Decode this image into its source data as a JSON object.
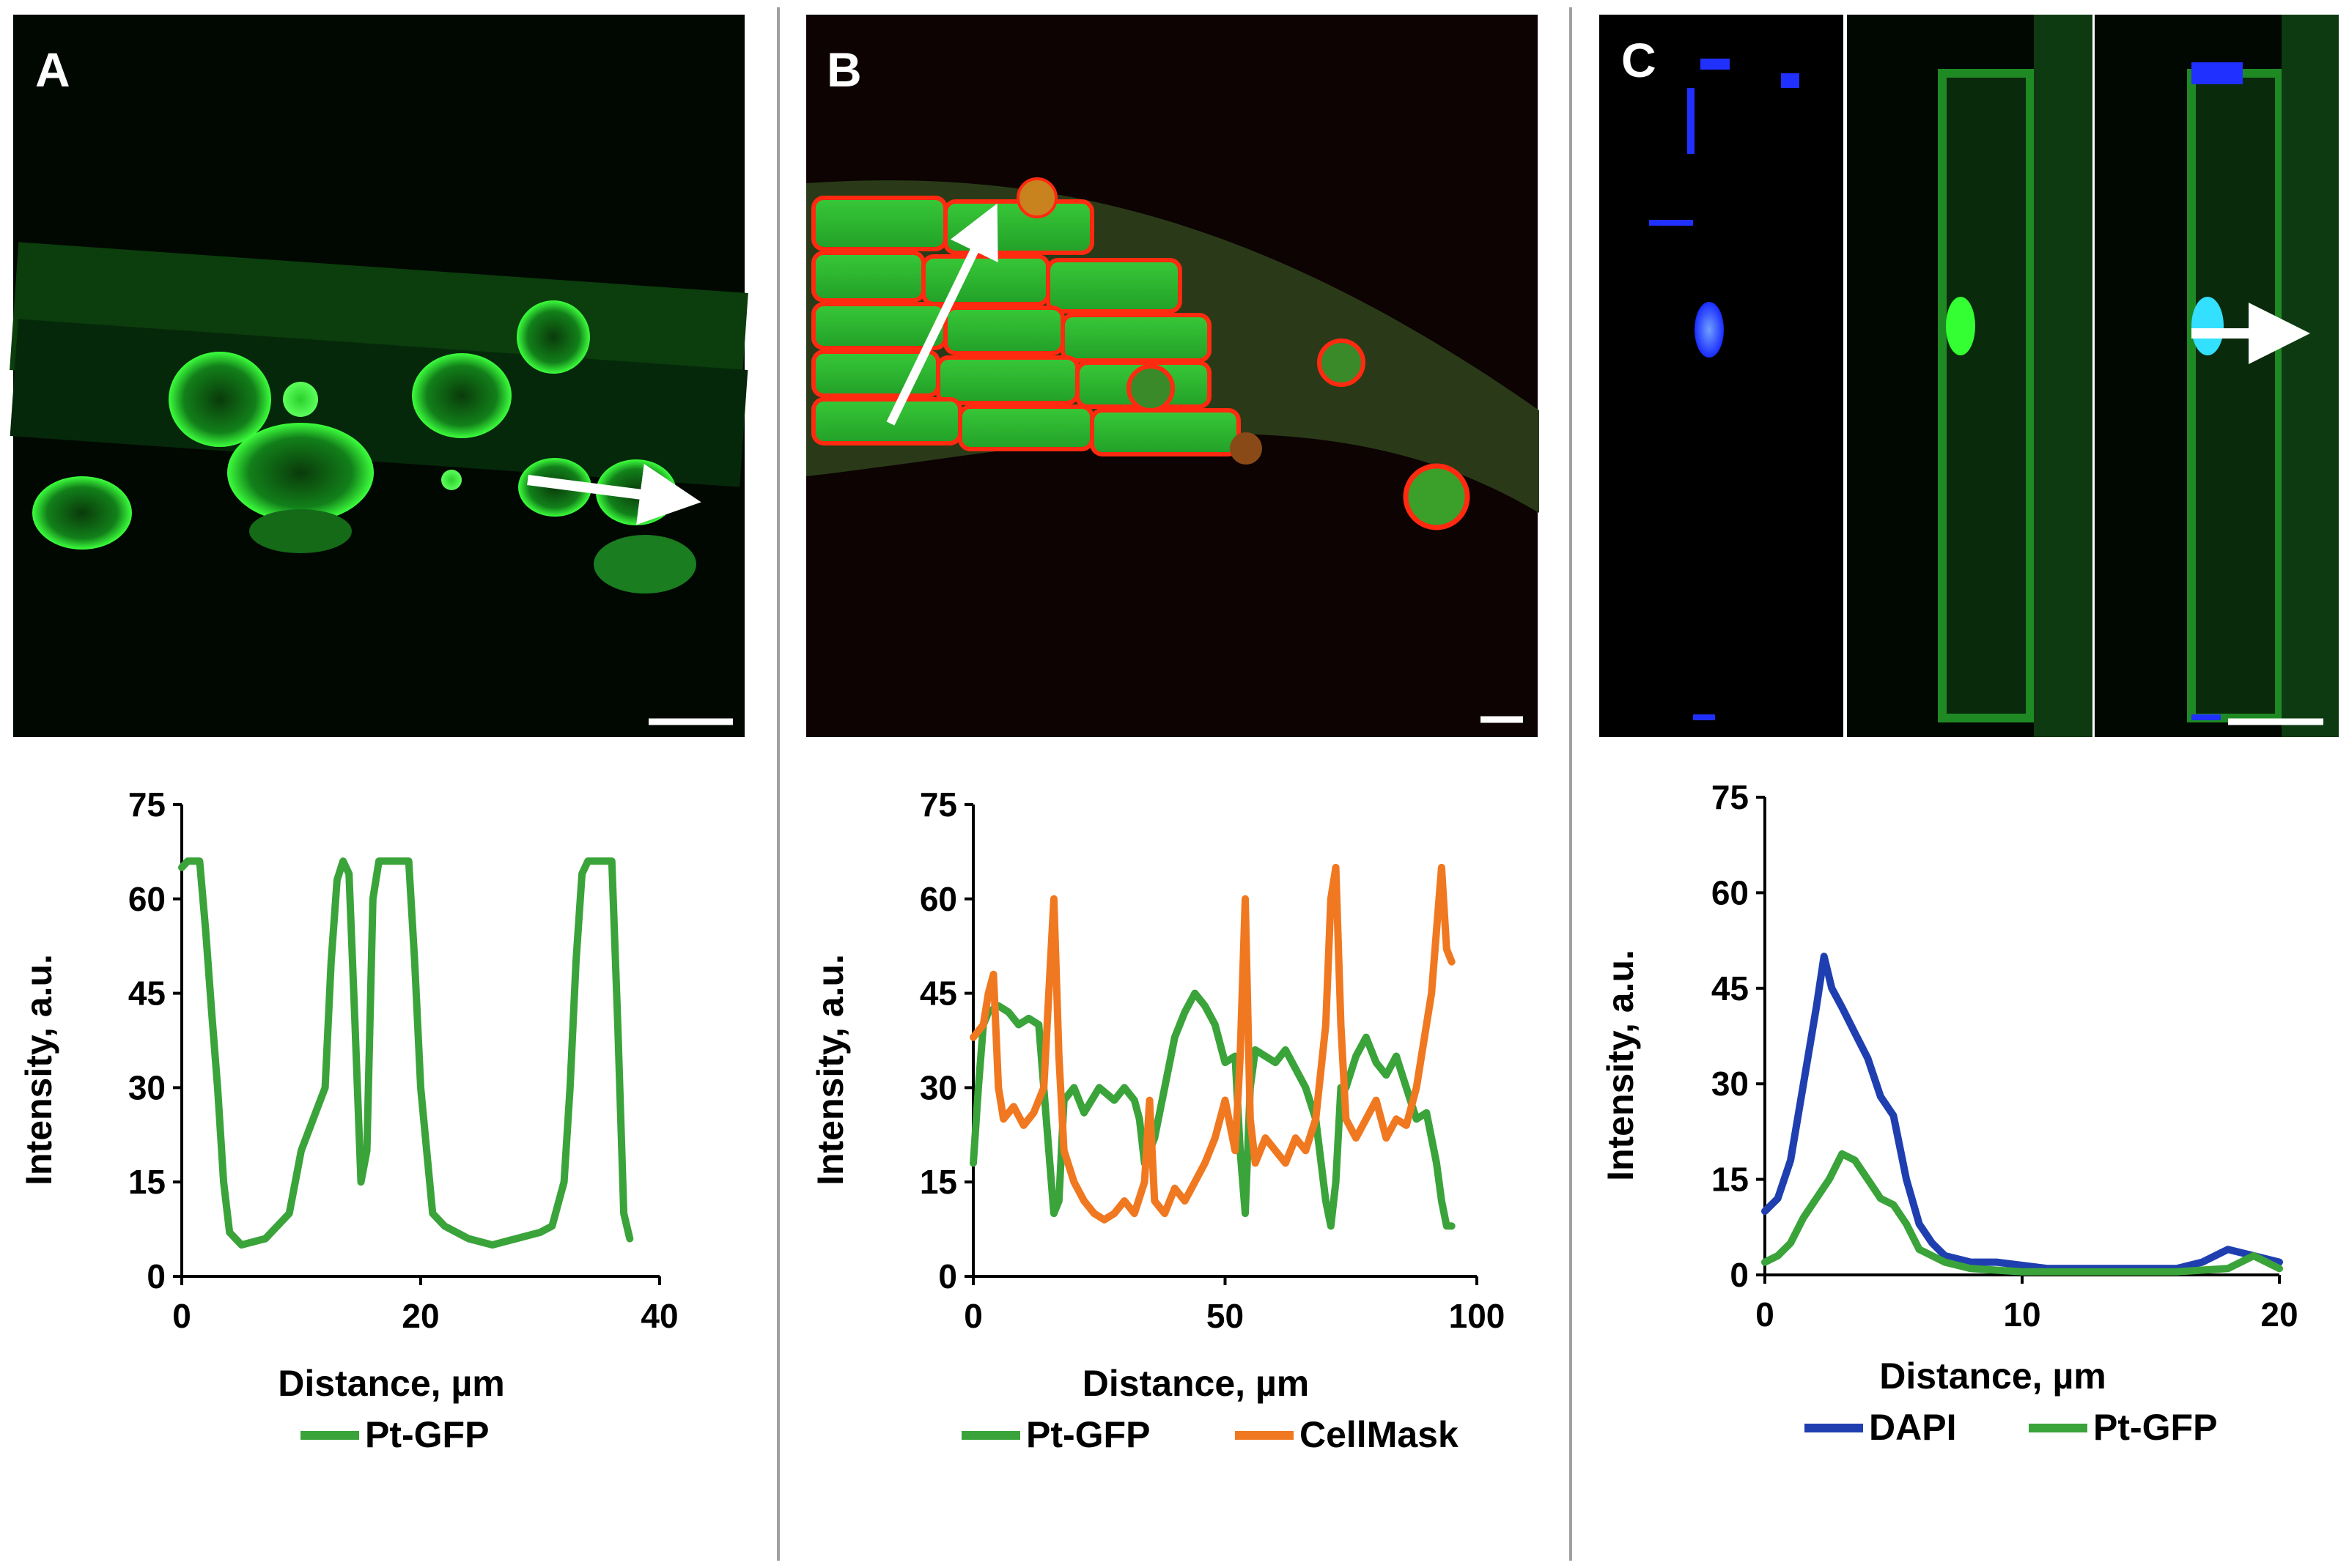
{
  "panels": [
    {
      "label": "A"
    },
    {
      "label": "B"
    },
    {
      "label": "C"
    }
  ],
  "colors": {
    "pt_gfp": "#3aa33a",
    "cellmask": "#f07820",
    "dapi": "#1f3fb0",
    "gfp_fluor": "#22dd22",
    "membrane_red": "#ff2a10",
    "nucleus_blue": "#2030ff",
    "divider": "#a0a0a0"
  },
  "chart_data": [
    {
      "type": "line",
      "panel": "A",
      "xlabel": "Distance, µm",
      "ylabel": "Intensity, a.u.",
      "xlim": [
        0,
        40
      ],
      "ylim": [
        0,
        75
      ],
      "xticks": [
        0,
        20,
        40
      ],
      "yticks": [
        0,
        15,
        30,
        45,
        60,
        75
      ],
      "legend_position": "bottom",
      "series": [
        {
          "name": "Pt-GFP",
          "color": "#3aa33a",
          "x": [
            0,
            0.5,
            1.5,
            2,
            2.5,
            3,
            3.5,
            4,
            5,
            7,
            9,
            10,
            11,
            12,
            12.5,
            13,
            13.5,
            14,
            14.5,
            15,
            15.5,
            16,
            16.5,
            17,
            19,
            19.5,
            20,
            21,
            22,
            24,
            26,
            28,
            30,
            31,
            32,
            32.5,
            33,
            33.5,
            34,
            35,
            36,
            36.5,
            37,
            37.5
          ],
          "y": [
            65,
            66,
            66,
            55,
            42,
            30,
            15,
            7,
            5,
            6,
            10,
            20,
            25,
            30,
            50,
            63,
            66,
            64,
            40,
            15,
            20,
            60,
            66,
            66,
            66,
            50,
            30,
            10,
            8,
            6,
            5,
            6,
            7,
            8,
            15,
            30,
            50,
            64,
            66,
            66,
            66,
            40,
            10,
            6
          ]
        }
      ]
    },
    {
      "type": "line",
      "panel": "B",
      "xlabel": "Distance, µm",
      "ylabel": "Intensity, a.u.",
      "xlim": [
        0,
        100
      ],
      "ylim": [
        0,
        75
      ],
      "xticks": [
        0,
        50,
        100
      ],
      "yticks": [
        0,
        15,
        30,
        45,
        60,
        75
      ],
      "legend_position": "bottom",
      "series": [
        {
          "name": "Pt-GFP",
          "color": "#3aa33a",
          "x": [
            0,
            1,
            2,
            3,
            5,
            7,
            9,
            11,
            13,
            15,
            16,
            17,
            18,
            20,
            22,
            25,
            28,
            30,
            32,
            33,
            34,
            36,
            38,
            40,
            42,
            44,
            46,
            48,
            50,
            52,
            53,
            54,
            55,
            56,
            58,
            60,
            62,
            64,
            66,
            68,
            70,
            71,
            72,
            73,
            74,
            76,
            78,
            80,
            82,
            84,
            86,
            88,
            90,
            92,
            93,
            94,
            95
          ],
          "y": [
            18,
            30,
            40,
            42,
            43,
            42,
            40,
            41,
            40,
            20,
            10,
            12,
            28,
            30,
            26,
            30,
            28,
            30,
            28,
            25,
            18,
            22,
            30,
            38,
            42,
            45,
            43,
            40,
            34,
            35,
            20,
            10,
            30,
            36,
            35,
            34,
            36,
            33,
            30,
            25,
            12,
            8,
            15,
            30,
            30,
            35,
            38,
            34,
            32,
            35,
            30,
            25,
            26,
            18,
            12,
            8,
            8
          ]
        },
        {
          "name": "CellMask",
          "color": "#f07820",
          "x": [
            0,
            2,
            3,
            4,
            5,
            6,
            8,
            10,
            12,
            14,
            15,
            16,
            17,
            18,
            20,
            22,
            24,
            26,
            28,
            30,
            32,
            34,
            35,
            36,
            38,
            40,
            42,
            44,
            46,
            48,
            50,
            52,
            53,
            54,
            55,
            56,
            58,
            60,
            62,
            64,
            66,
            68,
            70,
            71,
            72,
            73,
            74,
            76,
            78,
            80,
            82,
            84,
            86,
            88,
            90,
            91,
            92,
            93,
            94,
            95
          ],
          "y": [
            38,
            40,
            45,
            48,
            30,
            25,
            27,
            24,
            26,
            30,
            45,
            60,
            35,
            20,
            15,
            12,
            10,
            9,
            10,
            12,
            10,
            15,
            28,
            12,
            10,
            14,
            12,
            15,
            18,
            22,
            28,
            20,
            35,
            60,
            25,
            18,
            22,
            20,
            18,
            22,
            20,
            25,
            40,
            60,
            65,
            40,
            25,
            22,
            25,
            28,
            22,
            25,
            24,
            30,
            40,
            45,
            55,
            65,
            52,
            50
          ]
        }
      ]
    },
    {
      "type": "line",
      "panel": "C",
      "xlabel": "Distance, µm",
      "ylabel": "Intensity, a.u.",
      "xlim": [
        0,
        20
      ],
      "ylim": [
        0,
        75
      ],
      "xticks": [
        0,
        10,
        20
      ],
      "yticks": [
        0,
        15,
        30,
        45,
        60,
        75
      ],
      "legend_position": "bottom",
      "series": [
        {
          "name": "DAPI",
          "color": "#1f3fb0",
          "x": [
            0,
            0.5,
            1,
            1.5,
            2,
            2.3,
            2.6,
            3,
            3.5,
            4,
            4.5,
            5,
            5.5,
            6,
            6.5,
            7,
            8,
            9,
            10,
            11,
            12,
            14,
            16,
            17,
            17.5,
            18,
            19,
            20
          ],
          "y": [
            10,
            12,
            18,
            30,
            42,
            50,
            45,
            42,
            38,
            34,
            28,
            25,
            15,
            8,
            5,
            3,
            2,
            2,
            1.5,
            1,
            1,
            1,
            1,
            2,
            3,
            4,
            3,
            2
          ]
        },
        {
          "name": "Pt-GFP",
          "color": "#3aa33a",
          "x": [
            0,
            0.5,
            1,
            1.5,
            2,
            2.5,
            3,
            3.5,
            4,
            4.5,
            5,
            5.5,
            6,
            7,
            8,
            10,
            12,
            14,
            16,
            18,
            18.5,
            19,
            20
          ],
          "y": [
            2,
            3,
            5,
            9,
            12,
            15,
            19,
            18,
            15,
            12,
            11,
            8,
            4,
            2,
            1,
            0.5,
            0.5,
            0.5,
            0.5,
            1,
            2,
            3,
            1
          ]
        }
      ]
    }
  ]
}
